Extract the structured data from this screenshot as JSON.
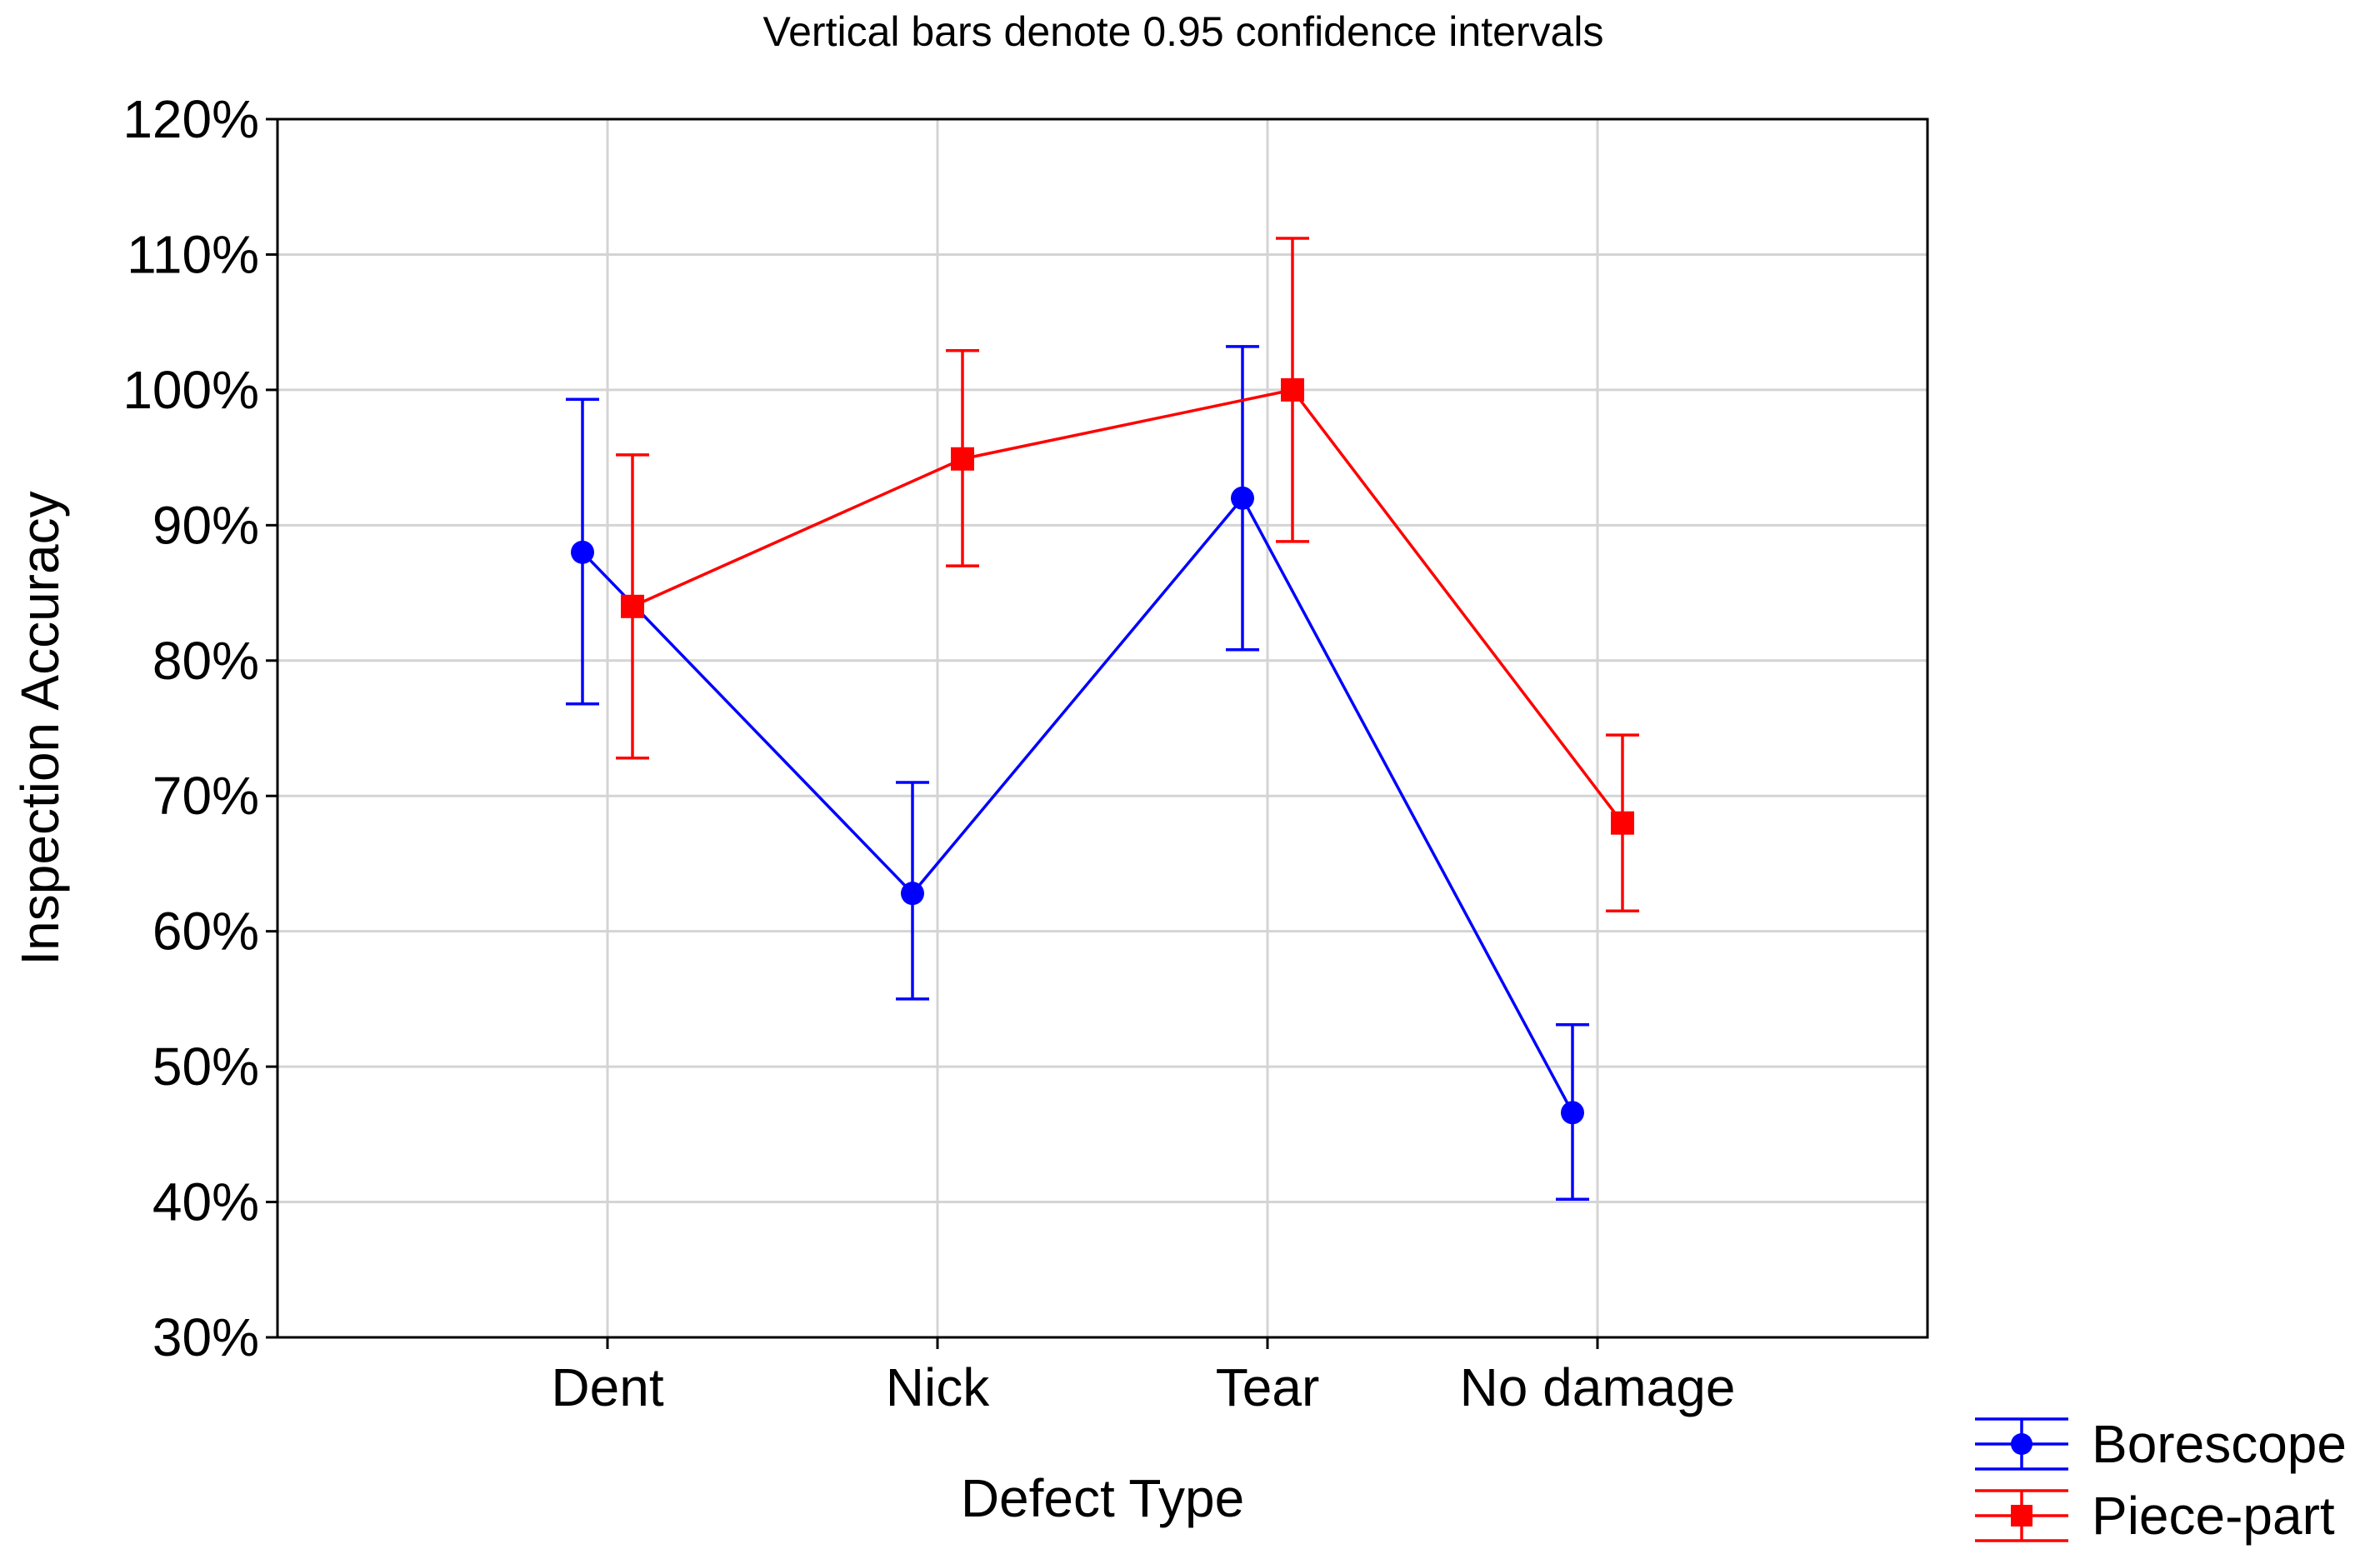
{
  "chart_data": {
    "type": "line",
    "subtitle": "Vertical bars denote 0.95 confidence intervals",
    "xlabel": "Defect Type",
    "ylabel": "Inspection Accuracy",
    "categories": [
      "Dent",
      "Nick",
      "Tear",
      "No damage"
    ],
    "ylim": [
      0.3,
      1.2
    ],
    "yticks": [
      0.3,
      0.4,
      0.5,
      0.6,
      0.7,
      0.8,
      0.9,
      1.0,
      1.1,
      1.2
    ],
    "ytick_labels": [
      "30%",
      "40%",
      "50%",
      "60%",
      "70%",
      "80%",
      "90%",
      "100%",
      "110%",
      "120%"
    ],
    "grid": true,
    "legend_position": "bottom-right-outside",
    "series": [
      {
        "name": "Borescope",
        "color": "#0000ff",
        "marker": "circle",
        "values": [
          0.88,
          0.628,
          0.92,
          0.466
        ],
        "ci_low": [
          0.768,
          0.55,
          0.808,
          0.402
        ],
        "ci_high": [
          0.993,
          0.71,
          1.032,
          0.531
        ]
      },
      {
        "name": "Piece-part",
        "color": "#ff0000",
        "marker": "square",
        "values": [
          0.84,
          0.949,
          1.0,
          0.68
        ],
        "ci_low": [
          0.728,
          0.87,
          0.888,
          0.615
        ],
        "ci_high": [
          0.952,
          1.029,
          1.112,
          0.745
        ]
      }
    ]
  }
}
